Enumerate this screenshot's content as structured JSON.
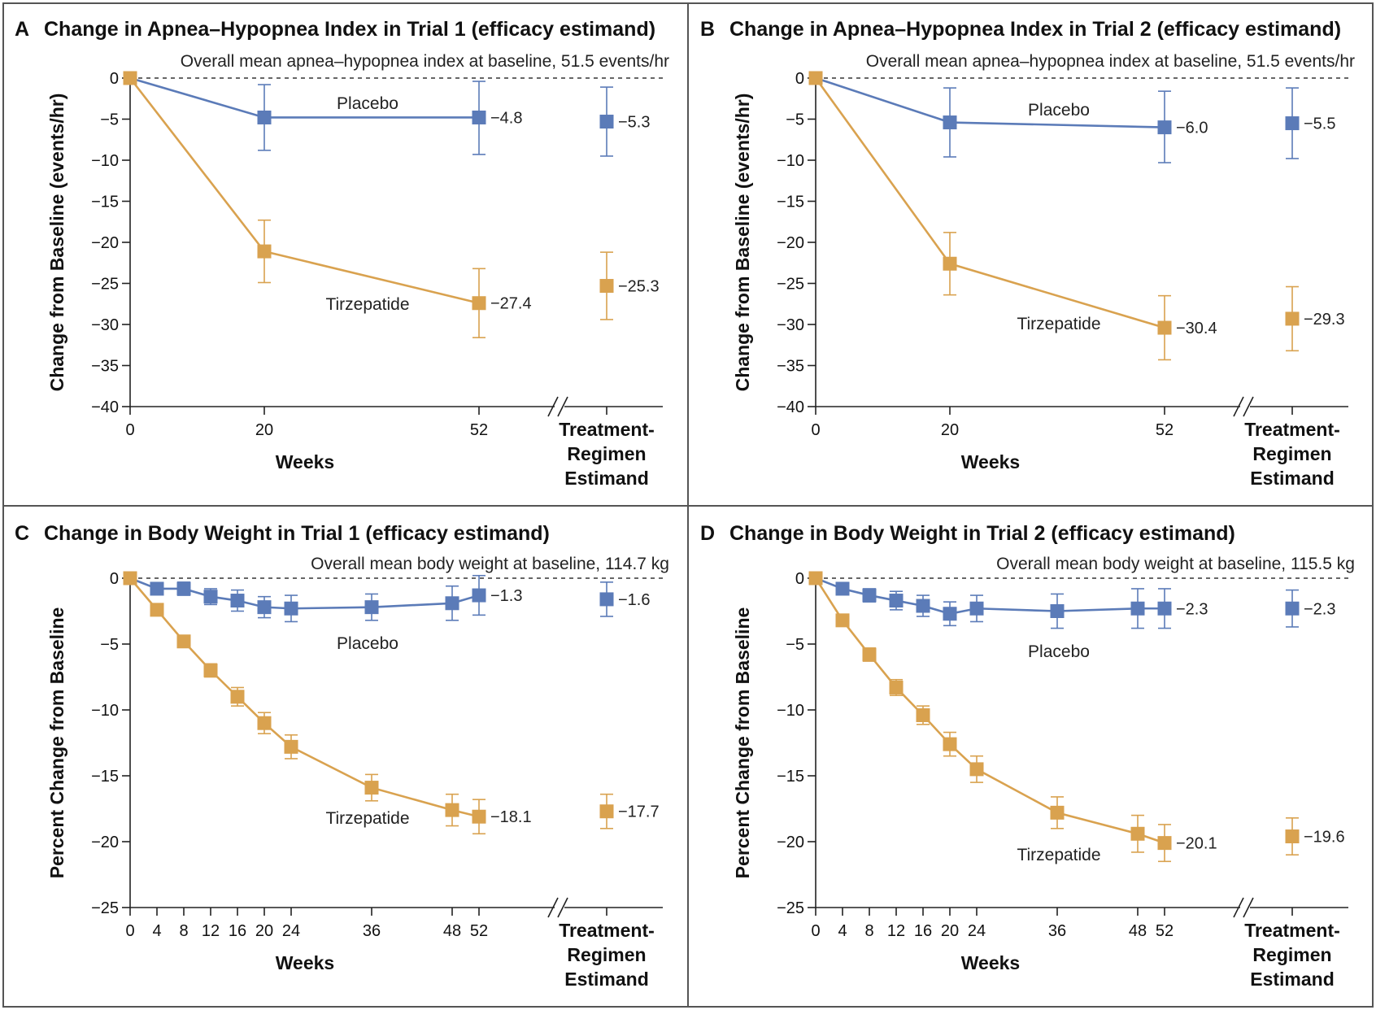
{
  "colors": {
    "placebo": "#5b7bb8",
    "tirzepatide": "#d9a24f",
    "frame": "#555555",
    "text": "#111111"
  },
  "x_axis_label": "Weeks",
  "break_label_lines": [
    "Treatment-",
    "Regimen",
    "Estimand"
  ],
  "chart_data": [
    {
      "id": "A",
      "type": "line",
      "letter": "A",
      "title": "Change in Apnea–Hypopnea Index in Trial 1 (efficacy estimand)",
      "subtitle": "Overall mean apnea–hypopnea index at baseline, 51.5 events/hr",
      "ylabel": "Change from Baseline (events/hr)",
      "xlabel": "Weeks",
      "ylim": [
        -40,
        0
      ],
      "yticks": [
        0,
        -5,
        -10,
        -15,
        -20,
        -25,
        -30,
        -35,
        -40
      ],
      "xticks": [
        0,
        20,
        52
      ],
      "x_axis_max": 52,
      "series": [
        {
          "name": "Placebo",
          "color": "#5b7bb8",
          "x": [
            0,
            20,
            52
          ],
          "y": [
            0,
            -4.8,
            -4.8
          ],
          "ci_low": [
            0,
            -8.8,
            -9.3
          ],
          "ci_high": [
            0,
            -0.8,
            -0.4
          ],
          "end_label": "−4.8",
          "estimand": {
            "y": -5.3,
            "ci_low": -9.5,
            "ci_high": -1.1,
            "label": "−5.3"
          }
        },
        {
          "name": "Tirzepatide",
          "color": "#d9a24f",
          "x": [
            0,
            20,
            52
          ],
          "y": [
            0,
            -21.1,
            -27.4
          ],
          "ci_low": [
            0,
            -24.9,
            -31.6
          ],
          "ci_high": [
            0,
            -17.3,
            -23.2
          ],
          "end_label": "−27.4",
          "estimand": {
            "y": -25.3,
            "ci_low": -29.4,
            "ci_high": -21.2,
            "label": "−25.3"
          }
        }
      ]
    },
    {
      "id": "B",
      "type": "line",
      "letter": "B",
      "title": "Change in Apnea–Hypopnea Index in Trial 2 (efficacy estimand)",
      "subtitle": "Overall mean apnea–hypopnea index at baseline, 51.5 events/hr",
      "ylabel": "Change from Baseline (events/hr)",
      "xlabel": "Weeks",
      "ylim": [
        -40,
        0
      ],
      "yticks": [
        0,
        -5,
        -10,
        -15,
        -20,
        -25,
        -30,
        -35,
        -40
      ],
      "xticks": [
        0,
        20,
        52
      ],
      "x_axis_max": 52,
      "series": [
        {
          "name": "Placebo",
          "color": "#5b7bb8",
          "x": [
            0,
            20,
            52
          ],
          "y": [
            0,
            -5.4,
            -6.0
          ],
          "ci_low": [
            0,
            -9.6,
            -10.3
          ],
          "ci_high": [
            0,
            -1.2,
            -1.6
          ],
          "end_label": "−6.0",
          "estimand": {
            "y": -5.5,
            "ci_low": -9.8,
            "ci_high": -1.2,
            "label": "−5.5"
          }
        },
        {
          "name": "Tirzepatide",
          "color": "#d9a24f",
          "x": [
            0,
            20,
            52
          ],
          "y": [
            0,
            -22.6,
            -30.4
          ],
          "ci_low": [
            0,
            -26.4,
            -34.3
          ],
          "ci_high": [
            0,
            -18.8,
            -26.5
          ],
          "end_label": "−30.4",
          "estimand": {
            "y": -29.3,
            "ci_low": -33.2,
            "ci_high": -25.4,
            "label": "−29.3"
          }
        }
      ]
    },
    {
      "id": "C",
      "type": "line",
      "letter": "C",
      "title": "Change in Body Weight in Trial 1 (efficacy estimand)",
      "subtitle": "Overall mean body weight at baseline, 114.7 kg",
      "ylabel": "Percent Change from Baseline",
      "xlabel": "Weeks",
      "ylim": [
        -25,
        0
      ],
      "yticks": [
        0,
        -5,
        -10,
        -15,
        -20,
        -25
      ],
      "xticks": [
        0,
        4,
        8,
        12,
        16,
        20,
        24,
        36,
        48,
        52
      ],
      "x_axis_max": 52,
      "series": [
        {
          "name": "Placebo",
          "color": "#5b7bb8",
          "x": [
            0,
            4,
            8,
            12,
            16,
            20,
            24,
            36,
            48,
            52
          ],
          "y": [
            0,
            -0.8,
            -0.8,
            -1.4,
            -1.7,
            -2.2,
            -2.3,
            -2.2,
            -1.9,
            -1.3
          ],
          "ci_low": [
            0,
            -1.2,
            -1.3,
            -2.0,
            -2.5,
            -3.0,
            -3.3,
            -3.2,
            -3.2,
            -2.8
          ],
          "ci_high": [
            0,
            -0.4,
            -0.3,
            -0.8,
            -0.9,
            -1.4,
            -1.3,
            -1.2,
            -0.6,
            0.2
          ],
          "end_label": "−1.3",
          "estimand": {
            "y": -1.6,
            "ci_low": -2.9,
            "ci_high": -0.3,
            "label": "−1.6"
          }
        },
        {
          "name": "Tirzepatide",
          "color": "#d9a24f",
          "x": [
            0,
            4,
            8,
            12,
            16,
            20,
            24,
            36,
            48,
            52
          ],
          "y": [
            0,
            -2.4,
            -4.8,
            -7.0,
            -9.0,
            -11.0,
            -12.8,
            -15.9,
            -17.6,
            -18.1
          ],
          "ci_low": [
            0,
            -2.8,
            -5.2,
            -7.5,
            -9.7,
            -11.8,
            -13.7,
            -16.9,
            -18.8,
            -19.4
          ],
          "ci_high": [
            0,
            -2.0,
            -4.4,
            -6.5,
            -8.3,
            -10.2,
            -11.9,
            -14.9,
            -16.4,
            -16.8
          ],
          "end_label": "−18.1",
          "estimand": {
            "y": -17.7,
            "ci_low": -19.0,
            "ci_high": -16.4,
            "label": "−17.7"
          }
        }
      ]
    },
    {
      "id": "D",
      "type": "line",
      "letter": "D",
      "title": "Change in Body Weight in Trial 2 (efficacy estimand)",
      "subtitle": "Overall mean body weight at baseline, 115.5 kg",
      "ylabel": "Percent Change from Baseline",
      "xlabel": "Weeks",
      "ylim": [
        -25,
        0
      ],
      "yticks": [
        0,
        -5,
        -10,
        -15,
        -20,
        -25
      ],
      "xticks": [
        0,
        4,
        8,
        12,
        16,
        20,
        24,
        36,
        48,
        52
      ],
      "x_axis_max": 52,
      "series": [
        {
          "name": "Placebo",
          "color": "#5b7bb8",
          "x": [
            0,
            4,
            8,
            12,
            16,
            20,
            24,
            36,
            48,
            52
          ],
          "y": [
            0,
            -0.8,
            -1.3,
            -1.7,
            -2.1,
            -2.7,
            -2.3,
            -2.5,
            -2.3,
            -2.3
          ],
          "ci_low": [
            0,
            -1.2,
            -1.8,
            -2.4,
            -2.9,
            -3.6,
            -3.3,
            -3.8,
            -3.8,
            -3.8
          ],
          "ci_high": [
            0,
            -0.4,
            -0.8,
            -1.0,
            -1.3,
            -1.8,
            -1.3,
            -1.2,
            -0.8,
            -0.8
          ],
          "end_label": "−2.3",
          "estimand": {
            "y": -2.3,
            "ci_low": -3.7,
            "ci_high": -0.9,
            "label": "−2.3"
          }
        },
        {
          "name": "Tirzepatide",
          "color": "#d9a24f",
          "x": [
            0,
            4,
            8,
            12,
            16,
            20,
            24,
            36,
            48,
            52
          ],
          "y": [
            0,
            -3.2,
            -5.8,
            -8.3,
            -10.4,
            -12.6,
            -14.5,
            -17.8,
            -19.4,
            -20.1
          ],
          "ci_low": [
            0,
            -3.6,
            -6.3,
            -8.9,
            -11.1,
            -13.5,
            -15.5,
            -19.0,
            -20.8,
            -21.5
          ],
          "ci_high": [
            0,
            -2.8,
            -5.3,
            -7.7,
            -9.7,
            -11.7,
            -13.5,
            -16.6,
            -18.0,
            -18.7
          ],
          "end_label": "−20.1",
          "estimand": {
            "y": -19.6,
            "ci_low": -21.0,
            "ci_high": -18.2,
            "label": "−19.6"
          }
        }
      ]
    }
  ]
}
